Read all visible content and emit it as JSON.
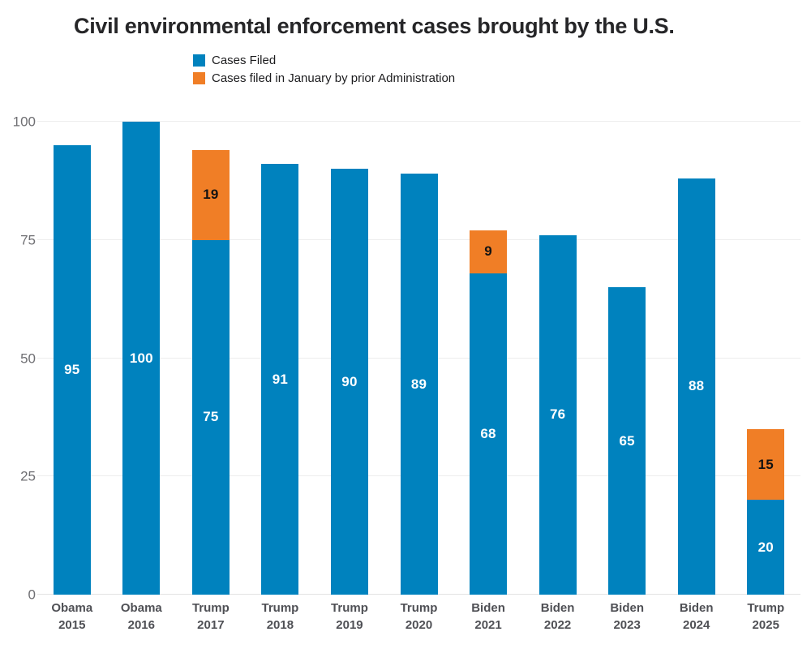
{
  "title": "Civil environmental enforcement cases brought by the U.S.",
  "colors": {
    "blue": "#0082BE",
    "orange": "#F07E26",
    "gridline": "#ededed",
    "axis_text": "#6f6f73",
    "x_label_text": "#4f5055",
    "title_text": "#262628"
  },
  "legend": {
    "items": [
      {
        "label": "Cases Filed",
        "color": "#0082BE"
      },
      {
        "label": "Cases filed in January by prior Administration",
        "color": "#F07E26"
      }
    ]
  },
  "chart_data": {
    "type": "bar",
    "stacked": true,
    "title": "Civil environmental enforcement cases brought by the U.S.",
    "xlabel": "",
    "ylabel": "",
    "ylim": [
      0,
      100
    ],
    "y_ticks": [
      0,
      25,
      50,
      75,
      100
    ],
    "grid": true,
    "legend_position": "top-left",
    "value_labels": "centered-in-segment",
    "categories": [
      {
        "line1": "Obama",
        "line2": "2015"
      },
      {
        "line1": "Obama",
        "line2": "2016"
      },
      {
        "line1": "Trump",
        "line2": "2017"
      },
      {
        "line1": "Trump",
        "line2": "2018"
      },
      {
        "line1": "Trump",
        "line2": "2019"
      },
      {
        "line1": "Trump",
        "line2": "2020"
      },
      {
        "line1": "Biden",
        "line2": "2021"
      },
      {
        "line1": "Biden",
        "line2": "2022"
      },
      {
        "line1": "Biden",
        "line2": "2023"
      },
      {
        "line1": "Biden",
        "line2": "2024"
      },
      {
        "line1": "Trump",
        "line2": "2025"
      }
    ],
    "series": [
      {
        "name": "Cases Filed",
        "color": "#0082BE",
        "label_color": "#ffffff",
        "values": [
          95,
          100,
          75,
          91,
          90,
          89,
          68,
          76,
          65,
          88,
          20
        ]
      },
      {
        "name": "Cases filed in January by prior Administration",
        "color": "#F07E26",
        "label_color": "#131313",
        "values": [
          0,
          0,
          19,
          0,
          0,
          0,
          9,
          0,
          0,
          0,
          15
        ]
      }
    ]
  }
}
